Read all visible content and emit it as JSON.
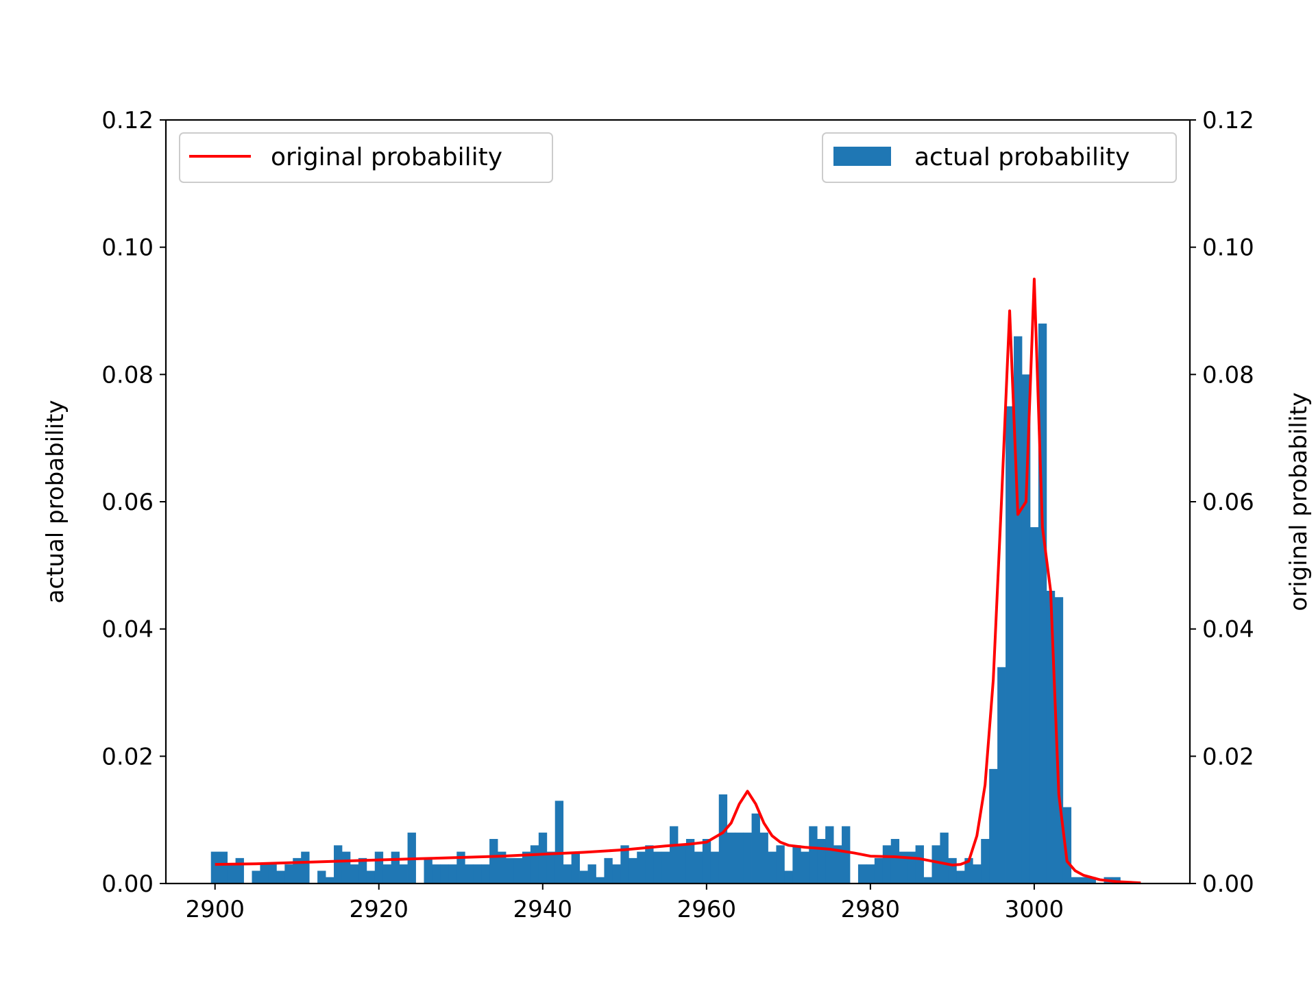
{
  "chart_data": {
    "type": "bar",
    "xlim": [
      2894,
      3019
    ],
    "ylim": [
      0,
      0.12
    ],
    "y2lim": [
      0,
      0.12
    ],
    "x_ticks": [
      2900,
      2920,
      2940,
      2960,
      2980,
      3000
    ],
    "y_ticks": [
      0.0,
      0.02,
      0.04,
      0.06,
      0.08,
      0.1,
      0.12
    ],
    "y2_ticks": [
      0.0,
      0.02,
      0.04,
      0.06,
      0.08,
      0.1,
      0.12
    ],
    "ylabel": "actual probability",
    "y2label": "original probability",
    "grid": false,
    "bar_color": "#1f77b4",
    "line_color": "#ff0000",
    "series": [
      {
        "name": "actual probability",
        "kind": "histogram",
        "axis": "left",
        "legend_position": "upper-right",
        "bin_start": 2899.5,
        "bin_width": 1,
        "values": [
          0.005,
          0.005,
          0.003,
          0.004,
          0.0,
          0.002,
          0.003,
          0.003,
          0.002,
          0.003,
          0.004,
          0.005,
          0.0,
          0.002,
          0.001,
          0.006,
          0.005,
          0.003,
          0.004,
          0.002,
          0.005,
          0.003,
          0.005,
          0.003,
          0.008,
          0.0,
          0.004,
          0.003,
          0.003,
          0.003,
          0.005,
          0.003,
          0.003,
          0.003,
          0.007,
          0.005,
          0.004,
          0.004,
          0.005,
          0.006,
          0.008,
          0.005,
          0.013,
          0.003,
          0.005,
          0.002,
          0.003,
          0.001,
          0.004,
          0.003,
          0.006,
          0.004,
          0.005,
          0.006,
          0.005,
          0.005,
          0.009,
          0.006,
          0.007,
          0.005,
          0.007,
          0.005,
          0.014,
          0.008,
          0.008,
          0.008,
          0.011,
          0.008,
          0.005,
          0.006,
          0.002,
          0.006,
          0.005,
          0.009,
          0.007,
          0.009,
          0.006,
          0.009,
          0.0,
          0.003,
          0.003,
          0.004,
          0.006,
          0.007,
          0.005,
          0.005,
          0.006,
          0.001,
          0.006,
          0.008,
          0.004,
          0.002,
          0.004,
          0.003,
          0.007,
          0.018,
          0.034,
          0.075,
          0.086,
          0.08,
          0.056,
          0.088,
          0.046,
          0.045,
          0.012,
          0.001,
          0.001,
          0.001,
          0.0,
          0.001,
          0.001
        ]
      },
      {
        "name": "original probability",
        "kind": "line",
        "axis": "right",
        "legend_position": "upper-left",
        "x": [
          2900,
          2905,
          2910,
          2915,
          2920,
          2925,
          2930,
          2935,
          2940,
          2945,
          2950,
          2955,
          2958,
          2960,
          2962,
          2963,
          2964,
          2965,
          2966,
          2967,
          2968,
          2969,
          2970,
          2972,
          2975,
          2978,
          2980,
          2983,
          2986,
          2988,
          2990,
          2991,
          2992,
          2993,
          2994,
          2995,
          2996,
          2997,
          2998,
          2999,
          3000,
          3001,
          3002,
          3003,
          3004,
          3005,
          3006,
          3008,
          3010,
          3013
        ],
        "values": [
          0.003,
          0.0031,
          0.0033,
          0.0035,
          0.0037,
          0.0039,
          0.0041,
          0.0043,
          0.0046,
          0.0049,
          0.0053,
          0.0059,
          0.0062,
          0.0065,
          0.008,
          0.0095,
          0.0125,
          0.0145,
          0.0125,
          0.0095,
          0.0075,
          0.0065,
          0.006,
          0.0057,
          0.0054,
          0.0048,
          0.0043,
          0.0042,
          0.0039,
          0.0034,
          0.0029,
          0.003,
          0.0035,
          0.0075,
          0.0155,
          0.032,
          0.06,
          0.09,
          0.058,
          0.06,
          0.095,
          0.056,
          0.046,
          0.014,
          0.0035,
          0.002,
          0.0013,
          0.0006,
          0.0003,
          0.0001
        ]
      }
    ]
  }
}
